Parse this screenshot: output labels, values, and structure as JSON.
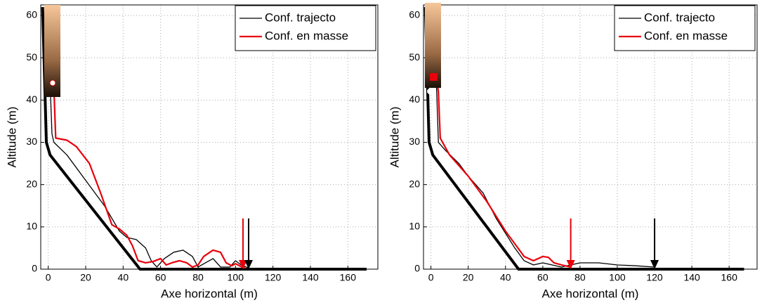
{
  "chart_data": [
    {
      "type": "line",
      "xlabel": "Axe horizontal (m)",
      "ylabel": "Altitude (m)",
      "xlim": [
        -4,
        176
      ],
      "ylim": [
        0,
        62.5
      ],
      "xticks": [
        0,
        20,
        40,
        60,
        80,
        100,
        120,
        140,
        160
      ],
      "yticks": [
        0,
        10,
        20,
        30,
        40,
        50,
        60
      ],
      "grid": true,
      "legend": "upper right",
      "series": [
        {
          "color": "#000000",
          "width": 4,
          "x": [
            -3,
            -1,
            1,
            49,
            170
          ],
          "values": [
            62,
            30,
            27,
            0,
            0
          ]
        },
        {
          "name": "Conf. trajecto",
          "color": "#000000",
          "width": 1.3,
          "x": [
            1,
            2,
            3,
            10,
            20,
            30,
            38,
            42,
            47,
            52,
            55,
            58,
            62,
            67,
            72,
            77,
            80,
            84,
            88,
            92,
            97,
            100,
            103,
            107
          ],
          "values": [
            44,
            32,
            30,
            27,
            21,
            15,
            9,
            7.5,
            7,
            5,
            2,
            0.5,
            2.5,
            4,
            4.5,
            3,
            0.5,
            1.5,
            2.5,
            0.5,
            0.5,
            2,
            1,
            0.3
          ]
        },
        {
          "name": "Conf. en masse",
          "color": "#e8000b",
          "width": 2.2,
          "x": [
            1,
            3,
            4,
            10,
            15,
            22,
            28,
            34,
            38,
            42,
            45,
            48,
            52,
            56,
            60,
            63,
            66,
            70,
            74,
            77,
            80,
            83,
            88,
            92,
            95,
            98,
            100,
            103,
            105
          ],
          "values": [
            44,
            43,
            31,
            30.5,
            29,
            25,
            18,
            10.5,
            9.5,
            8,
            5.5,
            2,
            1.5,
            1.8,
            2.5,
            1,
            1.5,
            2,
            1.5,
            0.5,
            1,
            3,
            4.5,
            4,
            1.5,
            0.8,
            1.3,
            0.6,
            0.3
          ]
        }
      ],
      "arrows": [
        {
          "x": 104,
          "from": 12,
          "to": 0,
          "color": "#e8000b"
        },
        {
          "x": 107,
          "from": 12,
          "to": 0,
          "color": "#000000"
        }
      ]
    },
    {
      "type": "line",
      "xlabel": "Axe horizontal (m)",
      "ylabel": "Altitude (m)",
      "xlim": [
        -4,
        175
      ],
      "ylim": [
        0,
        62.5
      ],
      "xticks": [
        0,
        20,
        40,
        60,
        80,
        100,
        120,
        140,
        160
      ],
      "yticks": [
        0,
        10,
        20,
        30,
        40,
        50,
        60
      ],
      "grid": true,
      "legend": "upper right",
      "series": [
        {
          "color": "#000000",
          "width": 4,
          "x": [
            -3,
            -1,
            1,
            47,
            168
          ],
          "values": [
            62,
            30,
            27,
            0,
            0
          ]
        },
        {
          "name": "Conf. trajecto",
          "color": "#000000",
          "width": 1.3,
          "x": [
            3,
            4,
            8,
            15,
            20,
            28,
            35,
            40,
            45,
            50,
            55,
            60,
            65,
            70,
            75,
            80,
            90,
            100,
            110,
            120
          ],
          "values": [
            43,
            30,
            28,
            25,
            22,
            18,
            12,
            8.5,
            5,
            2,
            1,
            1.5,
            1,
            0.5,
            1,
            1.5,
            1.5,
            1,
            0.8,
            0.5
          ]
        },
        {
          "name": "Conf. en masse",
          "color": "#e8000b",
          "width": 2.2,
          "x": [
            3,
            4,
            5,
            10,
            20,
            30,
            40,
            45,
            50,
            55,
            60,
            63,
            66,
            70,
            75
          ],
          "values": [
            45,
            42,
            31,
            27,
            22,
            16,
            9,
            6,
            3,
            2,
            3,
            2.8,
            1.5,
            1,
            0.5
          ]
        }
      ],
      "arrows": [
        {
          "x": 75,
          "from": 12,
          "to": 0,
          "color": "#e8000b"
        },
        {
          "x": 120,
          "from": 12,
          "to": 0,
          "color": "#000000"
        }
      ]
    }
  ]
}
